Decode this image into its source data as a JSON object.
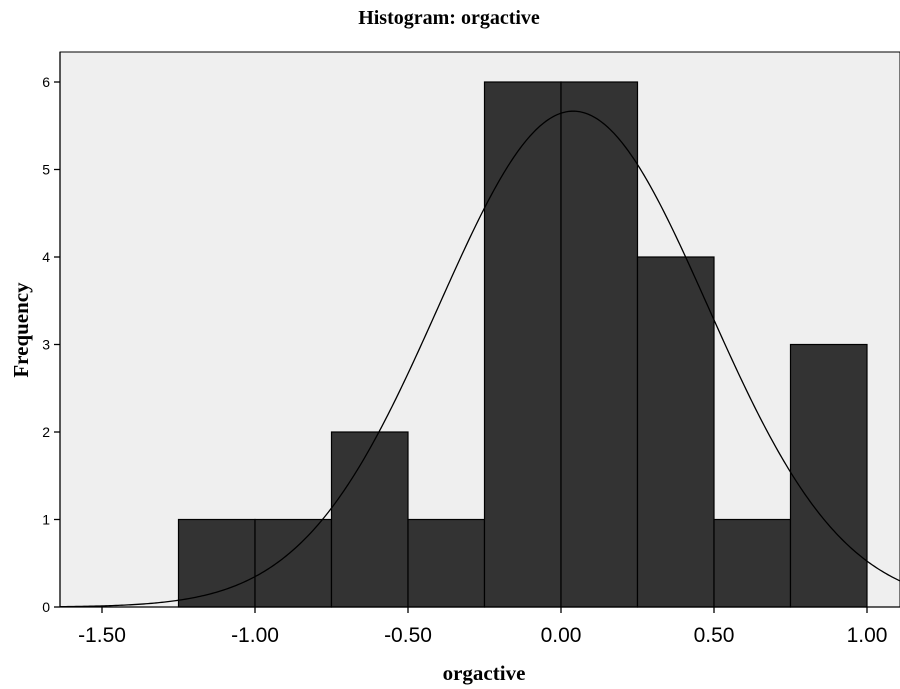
{
  "chart_data": {
    "type": "bar",
    "title": "Histogram: orgactive",
    "xlabel": "orgactive",
    "ylabel": "Frequency",
    "xlim": [
      -1.65,
      1.1
    ],
    "ylim": [
      0,
      6.3
    ],
    "xticks": [
      -1.5,
      -1.0,
      -0.5,
      0.0,
      0.5,
      1.0
    ],
    "xtick_labels": [
      "-1.50",
      "-1.00",
      "-0.50",
      "0.00",
      "0.50",
      "1.00"
    ],
    "yticks": [
      0,
      1,
      2,
      3,
      4,
      5,
      6
    ],
    "ytick_labels": [
      "0",
      "1",
      "2",
      "3",
      "4",
      "5",
      "6"
    ],
    "bin_width": 0.25,
    "bins": [
      {
        "start": -1.25,
        "end": -1.0,
        "count": 1
      },
      {
        "start": -1.0,
        "end": -0.75,
        "count": 1
      },
      {
        "start": -0.75,
        "end": -0.5,
        "count": 2
      },
      {
        "start": -0.5,
        "end": -0.25,
        "count": 1
      },
      {
        "start": -0.25,
        "end": 0.0,
        "count": 6
      },
      {
        "start": 0.0,
        "end": 0.25,
        "count": 6
      },
      {
        "start": 0.25,
        "end": 0.5,
        "count": 4
      },
      {
        "start": 0.5,
        "end": 0.75,
        "count": 1
      },
      {
        "start": 0.75,
        "end": 1.0,
        "count": 3
      }
    ],
    "normal_curve": {
      "mean": 0.04,
      "sd": 0.44,
      "n": 25
    },
    "grid": false,
    "colors": {
      "bar_fill": "#333333",
      "bar_edge": "#000000",
      "plot_background": "#efefef",
      "curve": "#000000"
    }
  }
}
